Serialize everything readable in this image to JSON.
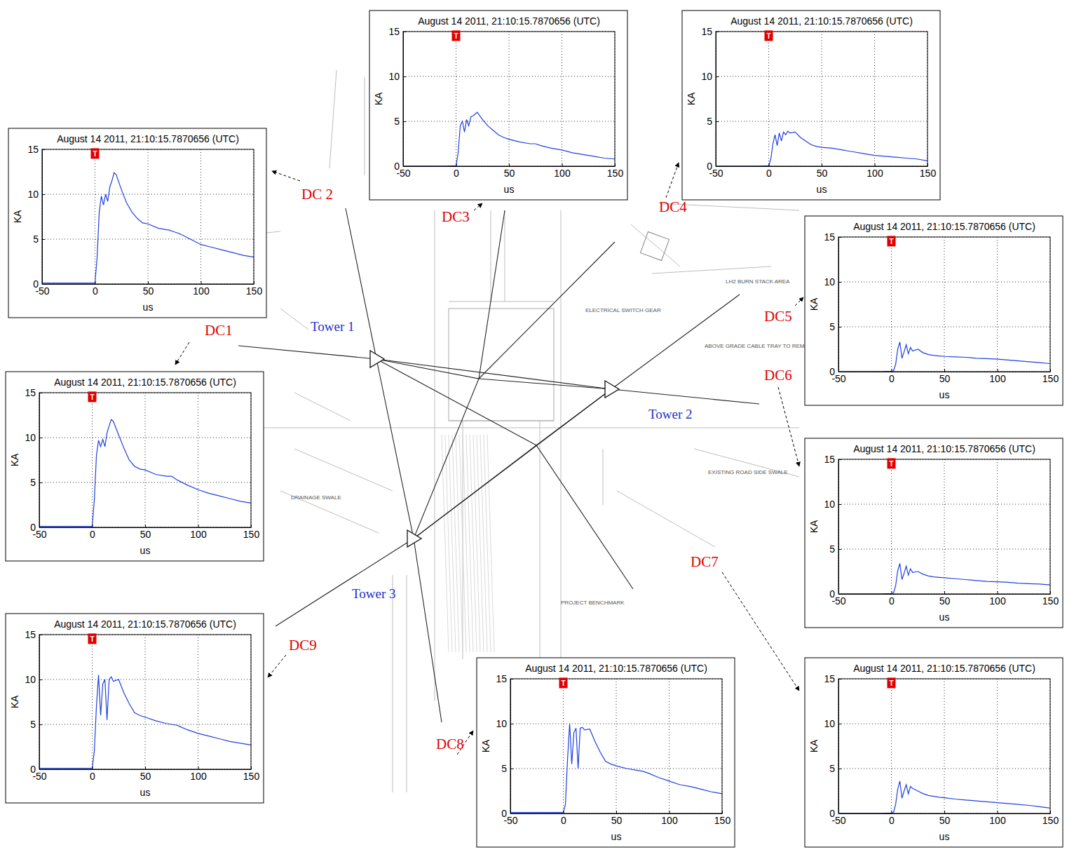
{
  "chart_data": [
    {
      "type": "line",
      "title": "August 14 2011, 21:10:15.7870656 (UTC)",
      "x_label": "us",
      "y_label": "KA",
      "color": "#2040e0",
      "grid": true,
      "xlim": [
        -50,
        150
      ],
      "xticks": [
        -50,
        0,
        50,
        100,
        150
      ],
      "ylim": [
        0,
        15
      ],
      "yticks": [
        0,
        5,
        10,
        15
      ],
      "annotations": [
        {
          "text": "T",
          "x": 0,
          "y": 14.5
        }
      ],
      "x": [
        -50,
        -10,
        0,
        2,
        4,
        6,
        8,
        10,
        12,
        14,
        16,
        18,
        20,
        25,
        30,
        35,
        40,
        45,
        50,
        60,
        70,
        75,
        80,
        90,
        100,
        110,
        120,
        130,
        140,
        150
      ],
      "values": [
        0.1,
        0.1,
        0.1,
        3,
        8,
        9.7,
        9,
        9.8,
        9,
        10.5,
        11.3,
        12,
        11.8,
        10.3,
        8.8,
        7.5,
        6.8,
        6.5,
        6.4,
        5.9,
        5.7,
        5.7,
        5.3,
        4.7,
        4.2,
        3.8,
        3.5,
        3.2,
        2.9,
        2.7
      ]
    },
    {
      "type": "line",
      "title": "August 14 2011, 21:10:15.7870656 (UTC)",
      "x_label": "us",
      "y_label": "KA",
      "color": "#2040e0",
      "grid": true,
      "xlim": [
        -50,
        150
      ],
      "xticks": [
        -50,
        0,
        50,
        100,
        150
      ],
      "ylim": [
        0,
        15
      ],
      "yticks": [
        0,
        5,
        10,
        15
      ],
      "annotations": [
        {
          "text": "T",
          "x": 0,
          "y": 14.5
        }
      ],
      "x": [
        -50,
        -10,
        0,
        2,
        4,
        6,
        8,
        10,
        12,
        14,
        16,
        18,
        20,
        25,
        30,
        35,
        40,
        45,
        50,
        60,
        70,
        75,
        80,
        90,
        100,
        110,
        120,
        130,
        140,
        150
      ],
      "values": [
        0.1,
        0.1,
        0.1,
        3,
        8,
        9.8,
        8.8,
        10,
        9.2,
        10.8,
        11.5,
        12.4,
        12.2,
        10.5,
        9,
        8,
        7.3,
        6.8,
        6.7,
        6.2,
        6,
        5.8,
        5.6,
        5,
        4.4,
        4.1,
        3.8,
        3.5,
        3.2,
        3.0
      ]
    },
    {
      "type": "line",
      "title": "August 14 2011, 21:10:15.7870656 (UTC)",
      "x_label": "us",
      "y_label": "KA",
      "color": "#2040e0",
      "grid": true,
      "xlim": [
        -50,
        150
      ],
      "xticks": [
        -50,
        0,
        50,
        100,
        150
      ],
      "ylim": [
        0,
        15
      ],
      "yticks": [
        0,
        5,
        10,
        15
      ],
      "annotations": [
        {
          "text": "T",
          "x": 0,
          "y": 14.5
        }
      ],
      "x": [
        -50,
        -10,
        0,
        2,
        4,
        6,
        8,
        10,
        12,
        14,
        16,
        18,
        20,
        25,
        30,
        35,
        40,
        45,
        50,
        60,
        70,
        75,
        80,
        90,
        100,
        110,
        120,
        130,
        140,
        150
      ],
      "values": [
        0,
        0,
        0.05,
        1.5,
        4.5,
        5,
        3.8,
        5.2,
        4.5,
        5.5,
        5.6,
        5.8,
        6,
        5.2,
        4.5,
        4,
        3.5,
        3.2,
        3,
        2.7,
        2.5,
        2.5,
        2.3,
        2,
        1.8,
        1.5,
        1.3,
        1.1,
        0.9,
        0.8
      ]
    },
    {
      "type": "line",
      "title": "August 14 2011, 21:10:15.7870656 (UTC)",
      "x_label": "us",
      "y_label": "KA",
      "color": "#2040e0",
      "grid": true,
      "xlim": [
        -50,
        150
      ],
      "xticks": [
        -50,
        0,
        50,
        100,
        150
      ],
      "ylim": [
        0,
        15
      ],
      "yticks": [
        0,
        5,
        10,
        15
      ],
      "annotations": [
        {
          "text": "T",
          "x": 0,
          "y": 14.5
        }
      ],
      "x": [
        -50,
        -10,
        0,
        2,
        4,
        6,
        8,
        10,
        12,
        14,
        16,
        18,
        20,
        25,
        30,
        35,
        40,
        45,
        50,
        60,
        70,
        75,
        80,
        90,
        100,
        110,
        120,
        130,
        140,
        150
      ],
      "values": [
        0,
        0,
        0.05,
        0.8,
        2.5,
        3.5,
        2.3,
        3.7,
        2.8,
        3.8,
        3.5,
        3.9,
        3.7,
        3.8,
        3.2,
        2.8,
        2.4,
        2.2,
        2.1,
        2,
        1.8,
        1.7,
        1.6,
        1.4,
        1.2,
        1.1,
        1,
        0.9,
        0.8,
        0.6
      ]
    },
    {
      "type": "line",
      "title": "August 14 2011, 21:10:15.7870656 (UTC)",
      "x_label": "us",
      "y_label": "KA",
      "color": "#2040e0",
      "grid": true,
      "xlim": [
        -50,
        150
      ],
      "xticks": [
        -50,
        0,
        50,
        100,
        150
      ],
      "ylim": [
        0,
        15
      ],
      "yticks": [
        0,
        5,
        10,
        15
      ],
      "annotations": [
        {
          "text": "T",
          "x": 0,
          "y": 14.5
        }
      ],
      "x": [
        -50,
        -10,
        0,
        2,
        4,
        6,
        8,
        10,
        12,
        14,
        16,
        18,
        20,
        25,
        30,
        35,
        40,
        45,
        50,
        60,
        70,
        75,
        80,
        90,
        100,
        110,
        120,
        130,
        140,
        150
      ],
      "values": [
        0,
        0,
        0.05,
        0.1,
        0.8,
        2.5,
        3.3,
        1.5,
        2.2,
        3,
        2,
        2.7,
        2.3,
        2.5,
        2.1,
        1.9,
        1.8,
        1.75,
        1.7,
        1.65,
        1.6,
        1.55,
        1.5,
        1.45,
        1.4,
        1.3,
        1.2,
        1.1,
        1,
        0.9
      ]
    },
    {
      "type": "line",
      "title": "August 14 2011, 21:10:15.7870656 (UTC)",
      "x_label": "us",
      "y_label": "KA",
      "color": "#2040e0",
      "grid": true,
      "xlim": [
        -50,
        150
      ],
      "xticks": [
        -50,
        0,
        50,
        100,
        150
      ],
      "ylim": [
        0,
        15
      ],
      "yticks": [
        0,
        5,
        10,
        15
      ],
      "annotations": [
        {
          "text": "T",
          "x": 0,
          "y": 14.5
        }
      ],
      "x": [
        -50,
        -10,
        0,
        2,
        4,
        6,
        8,
        10,
        12,
        14,
        16,
        18,
        20,
        25,
        30,
        35,
        40,
        45,
        50,
        60,
        70,
        75,
        80,
        90,
        100,
        110,
        120,
        130,
        140,
        150
      ],
      "values": [
        0,
        0,
        0.05,
        0.1,
        0.9,
        2.6,
        3.4,
        1.6,
        2.3,
        3.1,
        2.1,
        2.8,
        2.4,
        2.5,
        2.2,
        2,
        1.9,
        1.85,
        1.8,
        1.7,
        1.6,
        1.55,
        1.5,
        1.4,
        1.35,
        1.3,
        1.2,
        1.15,
        1.1,
        1
      ]
    },
    {
      "type": "line",
      "title": "August 14 2011, 21:10:15.7870656 (UTC)",
      "x_label": "us",
      "y_label": "KA",
      "color": "#2040e0",
      "grid": true,
      "xlim": [
        -50,
        150
      ],
      "xticks": [
        -50,
        0,
        50,
        100,
        150
      ],
      "ylim": [
        0,
        15
      ],
      "yticks": [
        0,
        5,
        10,
        15
      ],
      "annotations": [
        {
          "text": "T",
          "x": 0,
          "y": 14.5
        }
      ],
      "x": [
        -50,
        -10,
        0,
        2,
        4,
        6,
        8,
        10,
        12,
        14,
        16,
        18,
        20,
        25,
        30,
        35,
        40,
        45,
        50,
        60,
        70,
        75,
        80,
        90,
        100,
        110,
        120,
        130,
        140,
        150
      ],
      "values": [
        0,
        0,
        0.05,
        0.1,
        1,
        2.7,
        3.6,
        1.7,
        2.5,
        3.2,
        2.2,
        3,
        2.8,
        2.5,
        2.2,
        2,
        1.9,
        1.8,
        1.75,
        1.6,
        1.5,
        1.45,
        1.4,
        1.3,
        1.2,
        1.1,
        1,
        0.9,
        0.75,
        0.6
      ]
    },
    {
      "type": "line",
      "title": "August 14 2011, 21:10:15.7870656 (UTC)",
      "x_label": "us",
      "y_label": "KA",
      "color": "#2040e0",
      "grid": true,
      "xlim": [
        -50,
        150
      ],
      "xticks": [
        -50,
        0,
        50,
        100,
        150
      ],
      "ylim": [
        0,
        15
      ],
      "yticks": [
        0,
        5,
        10,
        15
      ],
      "annotations": [
        {
          "text": "T",
          "x": 0,
          "y": 14.5
        }
      ],
      "x": [
        -50,
        -10,
        0,
        2,
        4,
        6,
        8,
        10,
        12,
        14,
        16,
        18,
        20,
        25,
        30,
        35,
        40,
        45,
        50,
        60,
        70,
        75,
        80,
        90,
        100,
        110,
        120,
        130,
        140,
        150
      ],
      "values": [
        0.1,
        0.1,
        0.1,
        1,
        6,
        10,
        5.5,
        9,
        9.5,
        5,
        9.5,
        9.6,
        9.3,
        9.4,
        8,
        6.8,
        5.8,
        5.5,
        5.3,
        5,
        4.8,
        4.7,
        4.5,
        4,
        3.6,
        3.2,
        3,
        2.7,
        2.4,
        2.2
      ]
    },
    {
      "type": "line",
      "title": "August 14 2011, 21:10:15.7870656 (UTC)",
      "x_label": "us",
      "y_label": "KA",
      "color": "#2040e0",
      "grid": true,
      "xlim": [
        -50,
        150
      ],
      "xticks": [
        -50,
        0,
        50,
        100,
        150
      ],
      "ylim": [
        0,
        15
      ],
      "yticks": [
        0,
        5,
        10,
        15
      ],
      "annotations": [
        {
          "text": "T",
          "x": 0,
          "y": 14.5
        }
      ],
      "x": [
        -50,
        -10,
        0,
        2,
        4,
        6,
        8,
        10,
        12,
        14,
        16,
        18,
        20,
        25,
        30,
        35,
        40,
        45,
        50,
        60,
        70,
        75,
        80,
        90,
        100,
        110,
        120,
        130,
        140,
        150
      ],
      "values": [
        0.1,
        0.1,
        0.1,
        2,
        7,
        10.5,
        6,
        9.5,
        10,
        5.5,
        10,
        10.3,
        9.8,
        10,
        8.5,
        7.3,
        6.3,
        6,
        5.8,
        5.4,
        5.1,
        5,
        4.9,
        4.4,
        4,
        3.7,
        3.4,
        3.1,
        2.9,
        2.7
      ]
    }
  ],
  "conductors": [
    "DC1",
    "DC 2",
    "DC3",
    "DC4",
    "DC5",
    "DC6",
    "DC7",
    "DC8",
    "DC9"
  ],
  "towers": [
    "Tower 1",
    "Tower 2",
    "Tower 3"
  ],
  "plan_notes": [
    "DRAINAGE SWALE",
    "EXISTING ROAD SIDE SWALE",
    "PROJECT BENCHMARK",
    "LH2 BURN STACK AREA",
    "ELECTRICAL SWITCH GEAR",
    "ABOVE GRADE CABLE TRAY TO REMAIN"
  ]
}
